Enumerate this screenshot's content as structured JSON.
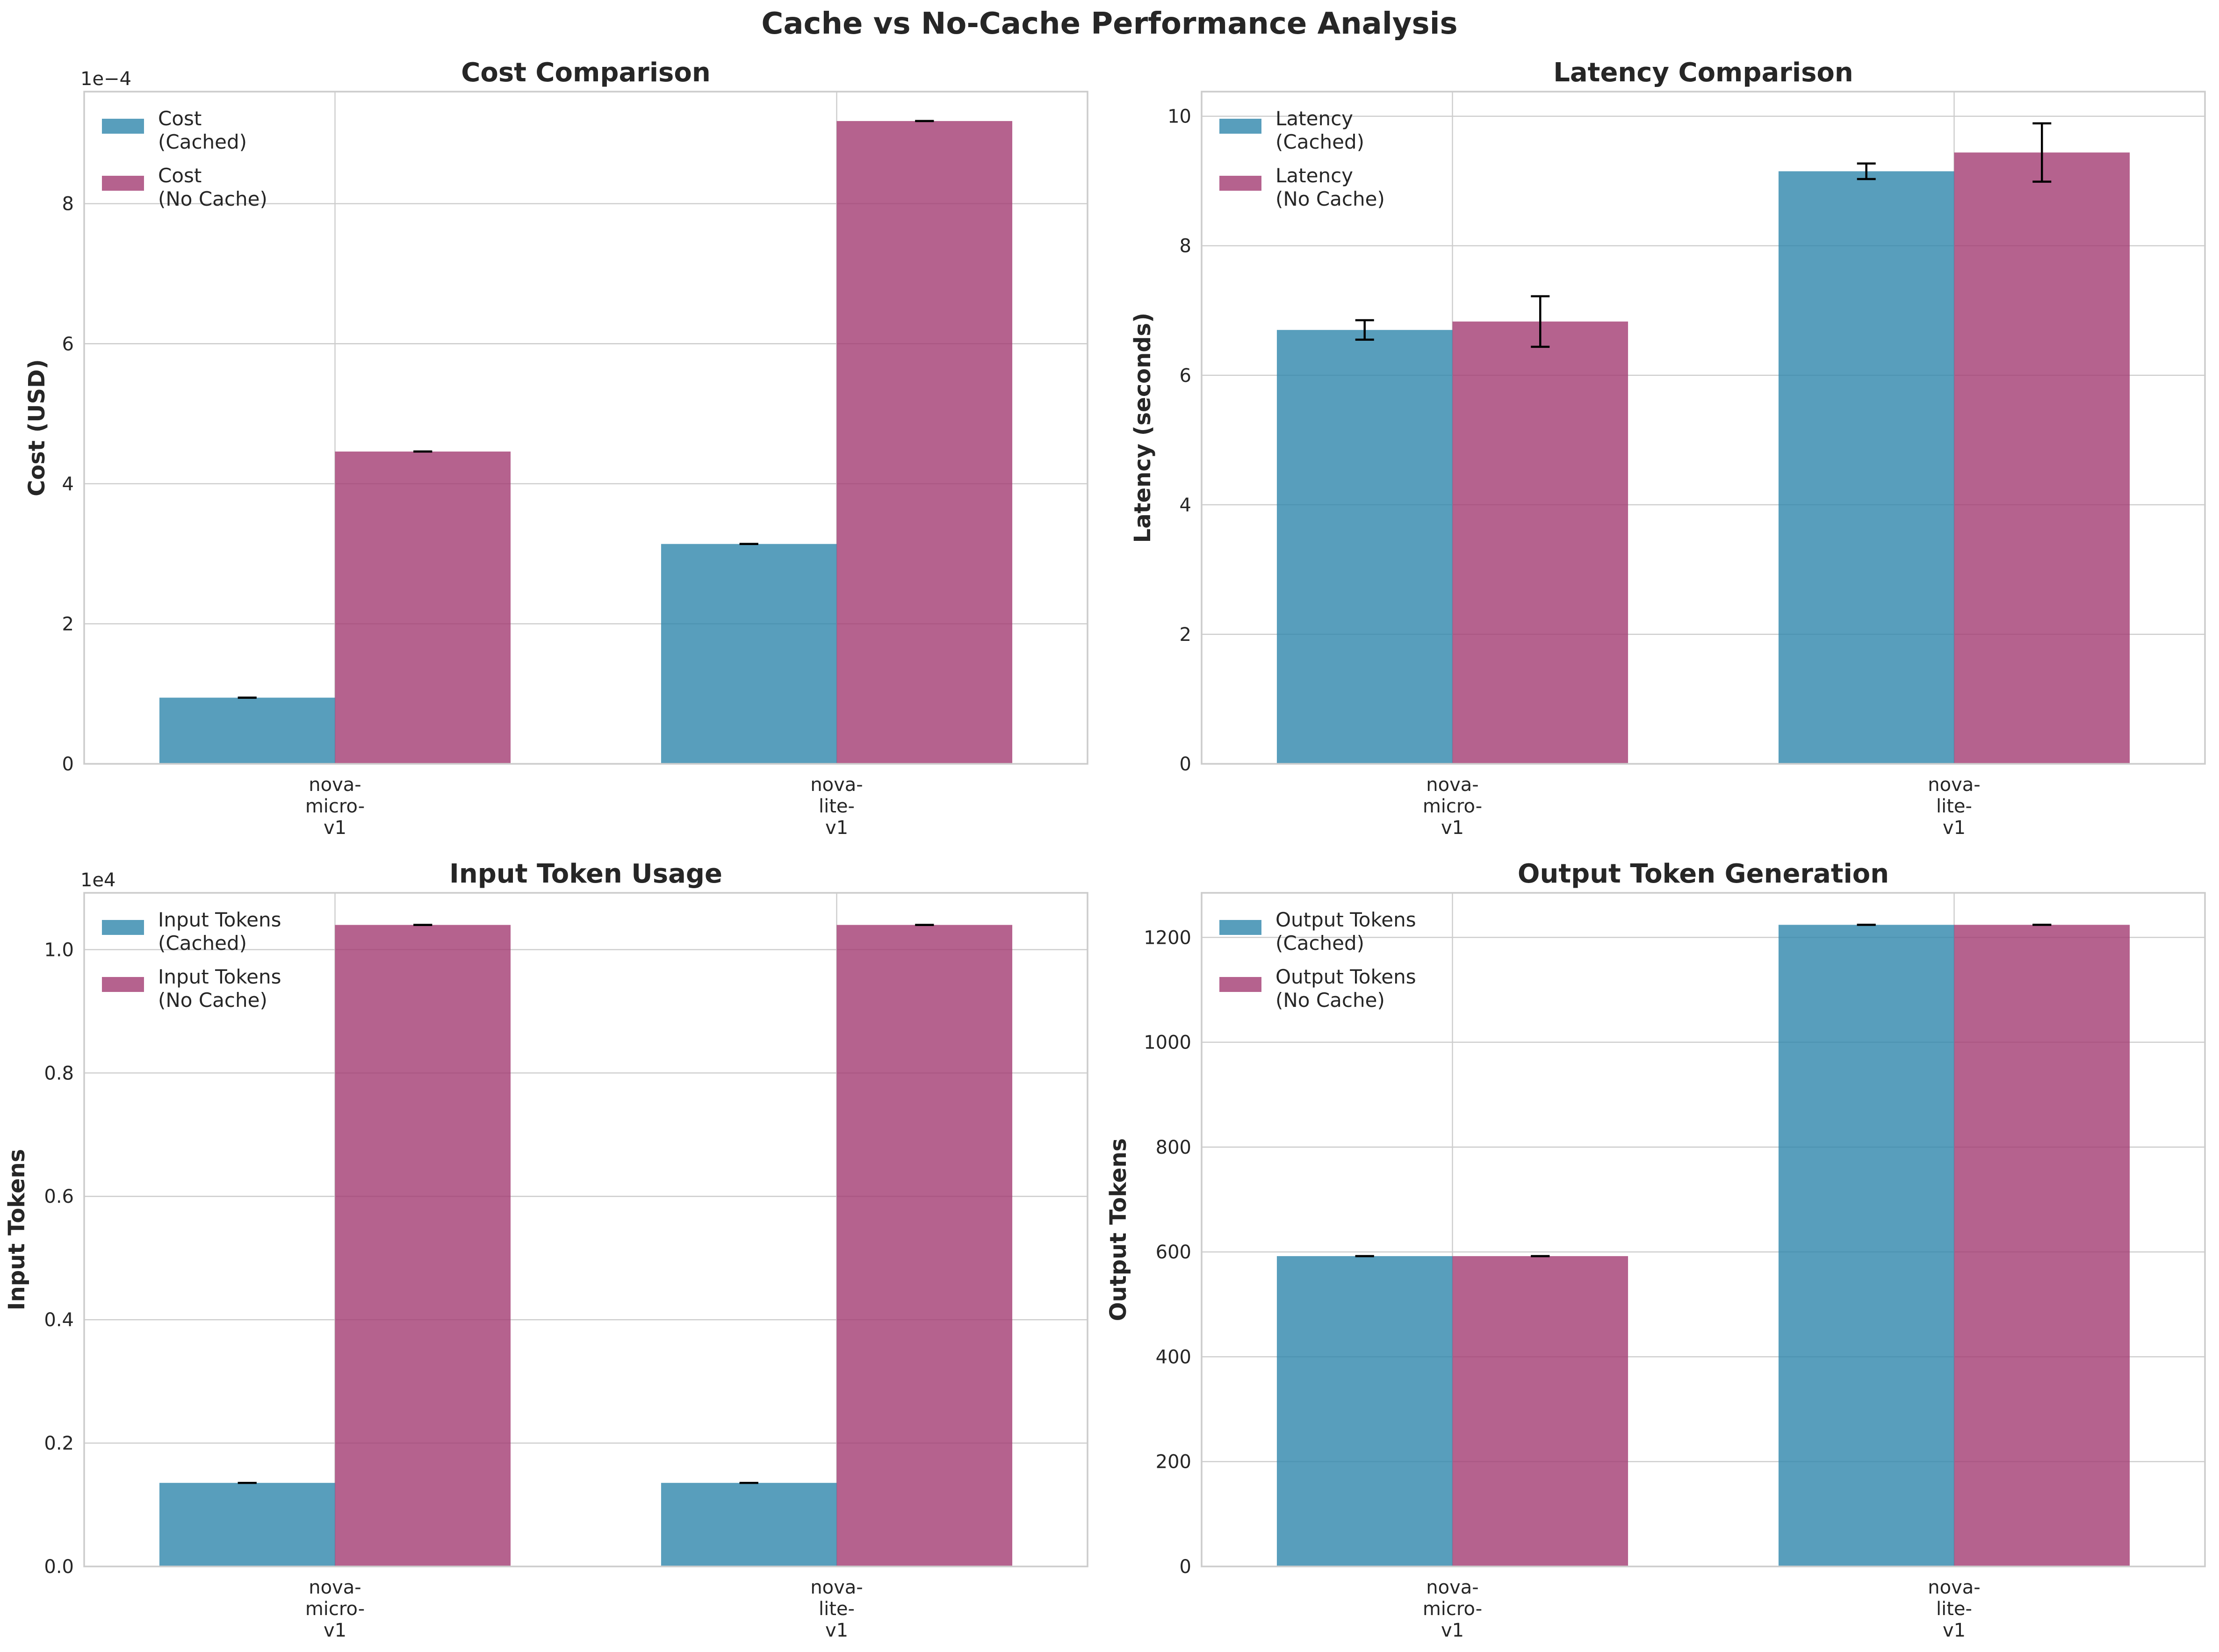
{
  "figure": {
    "title": "Cache vs No-Cache Performance Analysis",
    "colors": {
      "cached": "#2E86AB",
      "no_cache": "#A23B72",
      "grid": "#cccccc",
      "axes_edge": "#cccccc",
      "text": "#262626"
    }
  },
  "chart_data": [
    {
      "type": "bar",
      "title": "Cost Comparison",
      "xlabel": "",
      "ylabel": "Cost (USD)",
      "categories": [
        "nova-\nmicro-\nv1",
        "nova-\nlite-\nv1"
      ],
      "ylim": [
        0,
        0.00096
      ],
      "yticks": [
        0,
        0.0002,
        0.0004,
        0.0006,
        0.0008
      ],
      "ytick_labels": [
        "0",
        "2",
        "4",
        "6",
        "8"
      ],
      "offset_label": "1e−4",
      "legend_position": "upper-left",
      "series": [
        {
          "name": "Cost\n(Cached)",
          "values": [
            9.45e-05,
            0.000314
          ],
          "errors": [
            0,
            0
          ],
          "color": "#2E86AB"
        },
        {
          "name": "Cost\n(No Cache)",
          "values": [
            0.000446,
            0.000918
          ],
          "errors": [
            0,
            0
          ],
          "color": "#A23B72"
        }
      ]
    },
    {
      "type": "bar",
      "title": "Latency Comparison",
      "xlabel": "",
      "ylabel": "Latency (seconds)",
      "categories": [
        "nova-\nmicro-\nv1",
        "nova-\nlite-\nv1"
      ],
      "ylim": [
        0,
        10.38
      ],
      "yticks": [
        0,
        2,
        4,
        6,
        8,
        10
      ],
      "ytick_labels": [
        "0",
        "2",
        "4",
        "6",
        "8",
        "10"
      ],
      "offset_label": "",
      "legend_position": "upper-left",
      "series": [
        {
          "name": "Latency\n(Cached)",
          "values": [
            6.7,
            9.15
          ],
          "errors": [
            0.15,
            0.12
          ],
          "color": "#2E86AB"
        },
        {
          "name": "Latency\n(No Cache)",
          "values": [
            6.83,
            9.44
          ],
          "errors": [
            0.39,
            0.45
          ],
          "color": "#A23B72"
        }
      ]
    },
    {
      "type": "bar",
      "title": "Input Token Usage",
      "xlabel": "",
      "ylabel": "Input Tokens",
      "categories": [
        "nova-\nmicro-\nv1",
        "nova-\nlite-\nv1"
      ],
      "ylim": [
        0,
        10920
      ],
      "yticks": [
        0,
        2000,
        4000,
        6000,
        8000,
        10000
      ],
      "ytick_labels": [
        "0.0",
        "0.2",
        "0.4",
        "0.6",
        "0.8",
        "1.0"
      ],
      "offset_label": "1e4",
      "legend_position": "upper-left",
      "series": [
        {
          "name": "Input Tokens\n(Cached)",
          "values": [
            1355,
            1355
          ],
          "errors": [
            0,
            0
          ],
          "color": "#2E86AB"
        },
        {
          "name": "Input Tokens\n(No Cache)",
          "values": [
            10400,
            10400
          ],
          "errors": [
            0,
            0
          ],
          "color": "#A23B72"
        }
      ]
    },
    {
      "type": "bar",
      "title": "Output Token Generation",
      "xlabel": "",
      "ylabel": "Output Tokens",
      "categories": [
        "nova-\nmicro-\nv1",
        "nova-\nlite-\nv1"
      ],
      "ylim": [
        0,
        1285
      ],
      "yticks": [
        0,
        200,
        400,
        600,
        800,
        1000,
        1200
      ],
      "ytick_labels": [
        "0",
        "200",
        "400",
        "600",
        "800",
        "1000",
        "1200"
      ],
      "offset_label": "",
      "legend_position": "upper-left",
      "series": [
        {
          "name": "Output Tokens\n(Cached)",
          "values": [
            592,
            1224
          ],
          "errors": [
            0,
            0
          ],
          "color": "#2E86AB"
        },
        {
          "name": "Output Tokens\n(No Cache)",
          "values": [
            592,
            1224
          ],
          "errors": [
            0,
            0
          ],
          "color": "#A23B72"
        }
      ]
    }
  ]
}
